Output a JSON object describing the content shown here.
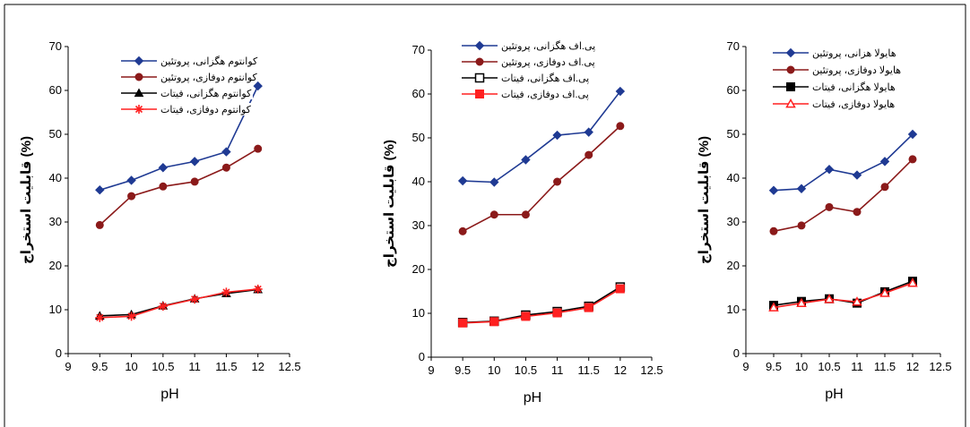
{
  "chart_data": [
    {
      "type": "line",
      "xlabel": "pH",
      "ylabel": "قابلیت استخراج (%)",
      "xlim": [
        9,
        12.5
      ],
      "ylim": [
        0,
        70
      ],
      "xticks": [
        "9",
        "9.5",
        "10",
        "10.5",
        "11",
        "11.5",
        "12",
        "12.5"
      ],
      "yticks": [
        "0",
        "10",
        "20",
        "30",
        "40",
        "50",
        "60",
        "70"
      ],
      "legend_position": "top-left",
      "x": [
        9.5,
        10,
        10.5,
        11,
        11.5,
        12
      ],
      "series": [
        {
          "name": "کوانتوم هگزانی، پروتئین",
          "values": [
            37.3,
            39.5,
            42.4,
            43.8,
            46.0,
            61.0
          ],
          "color": "#1f3a93",
          "marker": "diamond"
        },
        {
          "name": "کوانتوم دوفازی، پروتئین",
          "values": [
            29.3,
            35.9,
            38.1,
            39.2,
            42.4,
            46.7
          ],
          "color": "#8b1a1a",
          "marker": "circle"
        },
        {
          "name": "کوانتوم هگزانی، فیتات",
          "values": [
            8.6,
            8.9,
            10.9,
            12.5,
            13.7,
            14.6
          ],
          "color": "#000000",
          "marker": "triangle"
        },
        {
          "name": "کوانتوم دوفازی، فیتات",
          "values": [
            8.2,
            8.5,
            10.8,
            12.4,
            14.0,
            14.7
          ],
          "color": "#ff2020",
          "marker": "asterisk"
        }
      ]
    },
    {
      "type": "line",
      "xlabel": "pH",
      "ylabel": "قابلیت استخراج (%)",
      "xlim": [
        9,
        12.5
      ],
      "ylim": [
        0,
        70
      ],
      "xticks": [
        "9",
        "9.5",
        "10",
        "10.5",
        "11",
        "11.5",
        "12",
        "12.5"
      ],
      "yticks": [
        "0",
        "10",
        "20",
        "30",
        "40",
        "50",
        "60",
        "70"
      ],
      "legend_position": "top-left",
      "x": [
        9.5,
        10,
        10.5,
        11,
        11.5,
        12
      ],
      "series": [
        {
          "name": "پی.اف هگزانی، پروتئین",
          "values": [
            40.2,
            39.9,
            45.0,
            50.6,
            51.3,
            60.6
          ],
          "color": "#1f3a93",
          "marker": "diamond"
        },
        {
          "name": "پی.اف دوفازی، پروتئین",
          "values": [
            28.7,
            32.5,
            32.5,
            40.0,
            46.1,
            52.7
          ],
          "color": "#8b1a1a",
          "marker": "circle"
        },
        {
          "name": "پی.اف هگزانی، فیتات",
          "values": [
            7.9,
            8.2,
            9.6,
            10.4,
            11.6,
            16.0
          ],
          "color": "#000000",
          "marker": "square-open"
        },
        {
          "name": "پی.اف دوفازی، فیتات",
          "values": [
            7.8,
            8.1,
            9.3,
            10.1,
            11.3,
            15.6
          ],
          "color": "#ff2020",
          "marker": "square"
        }
      ]
    },
    {
      "type": "line",
      "xlabel": "pH",
      "ylabel": "قابلیت استخراج (%)",
      "xlim": [
        9,
        12.5
      ],
      "ylim": [
        0,
        70
      ],
      "xticks": [
        "9",
        "9.5",
        "10",
        "10.5",
        "11",
        "11.5",
        "12",
        "12.5"
      ],
      "yticks": [
        "0",
        "10",
        "20",
        "30",
        "40",
        "50",
        "60",
        "70"
      ],
      "legend_position": "top-left",
      "x": [
        9.5,
        10,
        10.5,
        11,
        11.5,
        12
      ],
      "series": [
        {
          "name": "هایولا هزانی، پروتئین",
          "values": [
            37.2,
            37.6,
            42.0,
            40.7,
            43.8,
            50.0
          ],
          "color": "#1f3a93",
          "marker": "diamond"
        },
        {
          "name": "هایولا دوفازی، پروتئین",
          "values": [
            27.9,
            29.2,
            33.4,
            32.3,
            38.0,
            44.3
          ],
          "color": "#8b1a1a",
          "marker": "circle"
        },
        {
          "name": "هایولا هگزانی، فیتات",
          "values": [
            11.0,
            11.9,
            12.5,
            11.5,
            14.1,
            16.5
          ],
          "color": "#000000",
          "marker": "square"
        },
        {
          "name": "هایولا دوفازی، فیتات",
          "values": [
            10.5,
            11.5,
            12.4,
            11.8,
            13.8,
            16.1
          ],
          "color": "#ff2020",
          "marker": "triangle-open"
        }
      ]
    }
  ]
}
